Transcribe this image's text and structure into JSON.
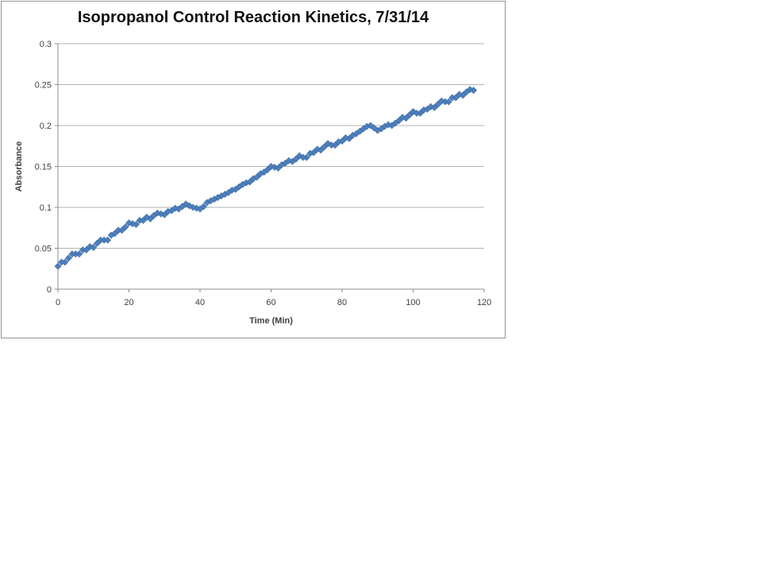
{
  "chart_data": {
    "type": "scatter",
    "title": "Isopropanol Control Reaction Kinetics, 7/31/14",
    "xlabel": "Time (Min)",
    "ylabel": "Absorbance",
    "xlim": [
      0,
      120
    ],
    "ylim": [
      0,
      0.3
    ],
    "x_ticks": [
      0,
      20,
      40,
      60,
      80,
      100,
      120
    ],
    "x_tick_labels": [
      "0",
      "20",
      "40",
      "60",
      "80",
      "100",
      "120"
    ],
    "y_ticks": [
      0,
      0.05,
      0.1,
      0.15,
      0.2,
      0.25,
      0.3
    ],
    "y_tick_labels": [
      "0",
      "0.05",
      "0.1",
      "0.15",
      "0.2",
      "0.25",
      "0.3"
    ],
    "grid": true,
    "legend": false,
    "marker": "diamond",
    "colors": {
      "marker_fill": "#4F81BD",
      "marker_edge": "#3E6DA5",
      "gridline": "#B3B3B3",
      "axis": "#8C8C8C",
      "text": "#3F3F3F",
      "border": "#969696",
      "title": "#111111"
    },
    "series": [
      {
        "name": "Absorbance",
        "x": [
          0,
          1,
          2,
          3,
          4,
          5,
          6,
          7,
          8,
          9,
          10,
          11,
          12,
          13,
          14,
          15,
          16,
          17,
          18,
          19,
          20,
          21,
          22,
          23,
          24,
          25,
          26,
          27,
          28,
          29,
          30,
          31,
          32,
          33,
          34,
          35,
          36,
          37,
          38,
          39,
          40,
          41,
          42,
          43,
          44,
          45,
          46,
          47,
          48,
          49,
          50,
          51,
          52,
          53,
          54,
          55,
          56,
          57,
          58,
          59,
          60,
          61,
          62,
          63,
          64,
          65,
          66,
          67,
          68,
          69,
          70,
          71,
          72,
          73,
          74,
          75,
          76,
          77,
          78,
          79,
          80,
          81,
          82,
          83,
          84,
          85,
          86,
          87,
          88,
          89,
          90,
          91,
          92,
          93,
          94,
          95,
          96,
          97,
          98,
          99,
          100,
          101,
          102,
          103,
          104,
          105,
          106,
          107,
          108,
          109,
          110,
          111,
          112,
          113,
          114,
          115,
          116,
          117
        ],
        "y": [
          0.028,
          0.033,
          0.033,
          0.038,
          0.043,
          0.043,
          0.043,
          0.048,
          0.048,
          0.052,
          0.051,
          0.056,
          0.06,
          0.06,
          0.06,
          0.066,
          0.068,
          0.072,
          0.072,
          0.076,
          0.081,
          0.08,
          0.079,
          0.084,
          0.084,
          0.088,
          0.086,
          0.09,
          0.093,
          0.092,
          0.091,
          0.095,
          0.096,
          0.099,
          0.098,
          0.101,
          0.104,
          0.102,
          0.1,
          0.099,
          0.098,
          0.101,
          0.106,
          0.108,
          0.11,
          0.112,
          0.114,
          0.116,
          0.118,
          0.121,
          0.122,
          0.125,
          0.128,
          0.13,
          0.131,
          0.135,
          0.137,
          0.141,
          0.143,
          0.146,
          0.15,
          0.149,
          0.148,
          0.152,
          0.154,
          0.157,
          0.156,
          0.159,
          0.163,
          0.161,
          0.161,
          0.166,
          0.167,
          0.171,
          0.17,
          0.174,
          0.178,
          0.176,
          0.176,
          0.18,
          0.181,
          0.185,
          0.184,
          0.188,
          0.19,
          0.193,
          0.196,
          0.199,
          0.2,
          0.197,
          0.194,
          0.196,
          0.199,
          0.201,
          0.2,
          0.203,
          0.206,
          0.21,
          0.209,
          0.213,
          0.217,
          0.215,
          0.215,
          0.219,
          0.22,
          0.223,
          0.222,
          0.226,
          0.23,
          0.229,
          0.229,
          0.234,
          0.234,
          0.238,
          0.237,
          0.241,
          0.244,
          0.243
        ]
      }
    ]
  }
}
